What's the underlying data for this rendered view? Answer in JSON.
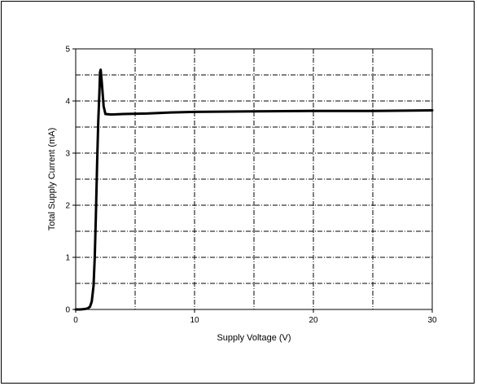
{
  "chart_data": {
    "type": "line",
    "title": "",
    "xlabel": "Supply Voltage (V)",
    "ylabel": "Total Supply Current (mA)",
    "xlim": [
      0,
      30
    ],
    "ylim": [
      0,
      5
    ],
    "x_major_ticks": [
      0,
      10,
      20,
      30
    ],
    "x_minor_grid": [
      5,
      15,
      25
    ],
    "y_major_ticks": [
      0,
      1,
      2,
      3,
      4,
      5
    ],
    "y_minor_grid": [
      0.5,
      1.5,
      2.5,
      3.5,
      4.5
    ],
    "grid": true,
    "series": [
      {
        "color": "#000000",
        "x": [
          0,
          0.4,
          0.8,
          1.0,
          1.2,
          1.35,
          1.5,
          1.6,
          1.7,
          1.8,
          1.9,
          2.0,
          2.05,
          2.1,
          2.2,
          2.35,
          2.5,
          3,
          4,
          6,
          8,
          10,
          15,
          20,
          25,
          30
        ],
        "y": [
          0,
          0,
          0.01,
          0.02,
          0.05,
          0.15,
          0.45,
          1.0,
          1.8,
          2.8,
          3.6,
          4.2,
          4.55,
          4.6,
          4.35,
          3.9,
          3.75,
          3.74,
          3.75,
          3.76,
          3.78,
          3.79,
          3.8,
          3.81,
          3.81,
          3.82
        ]
      }
    ]
  }
}
